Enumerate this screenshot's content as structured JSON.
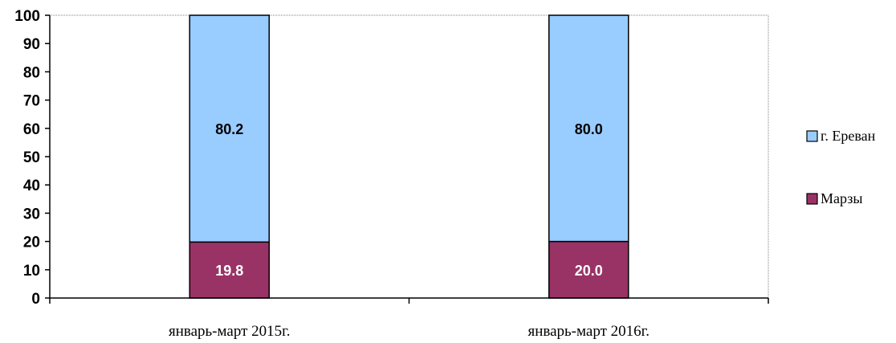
{
  "chart_data": {
    "type": "bar",
    "stacked": true,
    "categories": [
      "январь-март 2015г.",
      "январь-март 2016г."
    ],
    "series": [
      {
        "name": "Марзы",
        "values": [
          19.8,
          20.0
        ],
        "value_labels": [
          "19.8",
          "20.0"
        ],
        "color": "#993366",
        "label_color": "#ffffff"
      },
      {
        "name": "г. Ереван",
        "values": [
          80.2,
          80.0
        ],
        "value_labels": [
          "80.2",
          "80.0"
        ],
        "color": "#99ccff",
        "label_color": "#000000"
      }
    ],
    "ylim": [
      0,
      100
    ],
    "yticks": [
      "0",
      "10",
      "20",
      "30",
      "40",
      "50",
      "60",
      "70",
      "80",
      "90",
      "100"
    ],
    "grid": false,
    "legend": {
      "position": "right",
      "order": [
        "г. Ереван",
        "Марзы"
      ]
    }
  }
}
